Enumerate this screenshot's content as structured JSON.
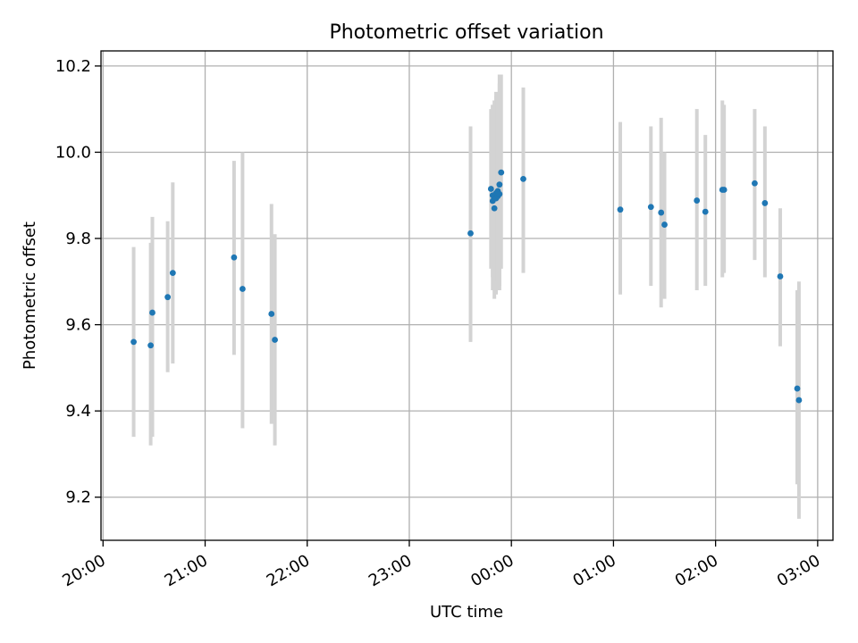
{
  "chart_data": {
    "type": "scatter",
    "title": "Photometric offset variation",
    "xlabel": "UTC time",
    "ylabel": "Photometric offset",
    "x_tick_labels": [
      "20:00",
      "21:00",
      "22:00",
      "23:00",
      "00:00",
      "01:00",
      "02:00",
      "03:00"
    ],
    "y_tick_labels": [
      "9.2",
      "9.4",
      "9.6",
      "9.8",
      "10.0",
      "10.2"
    ],
    "xlim_hours": [
      19.98,
      27.15
    ],
    "ylim": [
      9.1,
      10.235
    ],
    "grid": true,
    "marker_color": "#1f77b4",
    "errorbar_color": "#d3d3d3",
    "points": [
      {
        "t": "20:18",
        "y": 9.56,
        "lo": 9.34,
        "hi": 9.78
      },
      {
        "t": "20:28",
        "y": 9.552,
        "lo": 9.32,
        "hi": 9.79
      },
      {
        "t": "20:29",
        "y": 9.628,
        "lo": 9.34,
        "hi": 9.85
      },
      {
        "t": "20:38",
        "y": 9.664,
        "lo": 9.49,
        "hi": 9.84
      },
      {
        "t": "20:41",
        "y": 9.72,
        "lo": 9.51,
        "hi": 9.93
      },
      {
        "t": "21:17",
        "y": 9.756,
        "lo": 9.53,
        "hi": 9.98
      },
      {
        "t": "21:22",
        "y": 9.683,
        "lo": 9.36,
        "hi": 10.0
      },
      {
        "t": "21:39",
        "y": 9.625,
        "lo": 9.37,
        "hi": 9.88
      },
      {
        "t": "21:41",
        "y": 9.565,
        "lo": 9.32,
        "hi": 9.81
      },
      {
        "t": "23:36",
        "y": 9.812,
        "lo": 9.56,
        "hi": 10.06
      },
      {
        "t": "23:48",
        "y": 9.915,
        "lo": 9.73,
        "hi": 10.1
      },
      {
        "t": "23:49",
        "y": 9.9,
        "lo": 9.71,
        "hi": 10.11
      },
      {
        "t": "23:49",
        "y": 9.887,
        "lo": 9.68,
        "hi": 10.11
      },
      {
        "t": "23:50",
        "y": 9.87,
        "lo": 9.66,
        "hi": 10.12
      },
      {
        "t": "23:51",
        "y": 9.905,
        "lo": 9.69,
        "hi": 10.13
      },
      {
        "t": "23:51",
        "y": 9.893,
        "lo": 9.67,
        "hi": 10.14
      },
      {
        "t": "23:52",
        "y": 9.898,
        "lo": 9.7,
        "hi": 10.1
      },
      {
        "t": "23:52",
        "y": 9.91,
        "lo": 9.72,
        "hi": 10.12
      },
      {
        "t": "23:53",
        "y": 9.903,
        "lo": 9.68,
        "hi": 10.16
      },
      {
        "t": "23:53",
        "y": 9.925,
        "lo": 9.69,
        "hi": 10.18
      },
      {
        "t": "23:54",
        "y": 9.953,
        "lo": 9.73,
        "hi": 10.18
      },
      {
        "t": "00:07",
        "y": 9.938,
        "lo": 9.72,
        "hi": 10.15
      },
      {
        "t": "01:04",
        "y": 9.867,
        "lo": 9.67,
        "hi": 10.07
      },
      {
        "t": "01:22",
        "y": 9.873,
        "lo": 9.69,
        "hi": 10.06
      },
      {
        "t": "01:28",
        "y": 9.86,
        "lo": 9.64,
        "hi": 10.08
      },
      {
        "t": "01:30",
        "y": 9.832,
        "lo": 9.66,
        "hi": 10.0
      },
      {
        "t": "01:49",
        "y": 9.888,
        "lo": 9.68,
        "hi": 10.1
      },
      {
        "t": "01:54",
        "y": 9.862,
        "lo": 9.69,
        "hi": 10.04
      },
      {
        "t": "02:04",
        "y": 9.913,
        "lo": 9.71,
        "hi": 10.12
      },
      {
        "t": "02:05",
        "y": 9.913,
        "lo": 9.72,
        "hi": 10.11
      },
      {
        "t": "02:23",
        "y": 9.928,
        "lo": 9.75,
        "hi": 10.1
      },
      {
        "t": "02:29",
        "y": 9.882,
        "lo": 9.71,
        "hi": 10.06
      },
      {
        "t": "02:38",
        "y": 9.712,
        "lo": 9.55,
        "hi": 9.87
      },
      {
        "t": "02:48",
        "y": 9.452,
        "lo": 9.23,
        "hi": 9.68
      },
      {
        "t": "02:49",
        "y": 9.425,
        "lo": 9.15,
        "hi": 9.7
      }
    ]
  }
}
